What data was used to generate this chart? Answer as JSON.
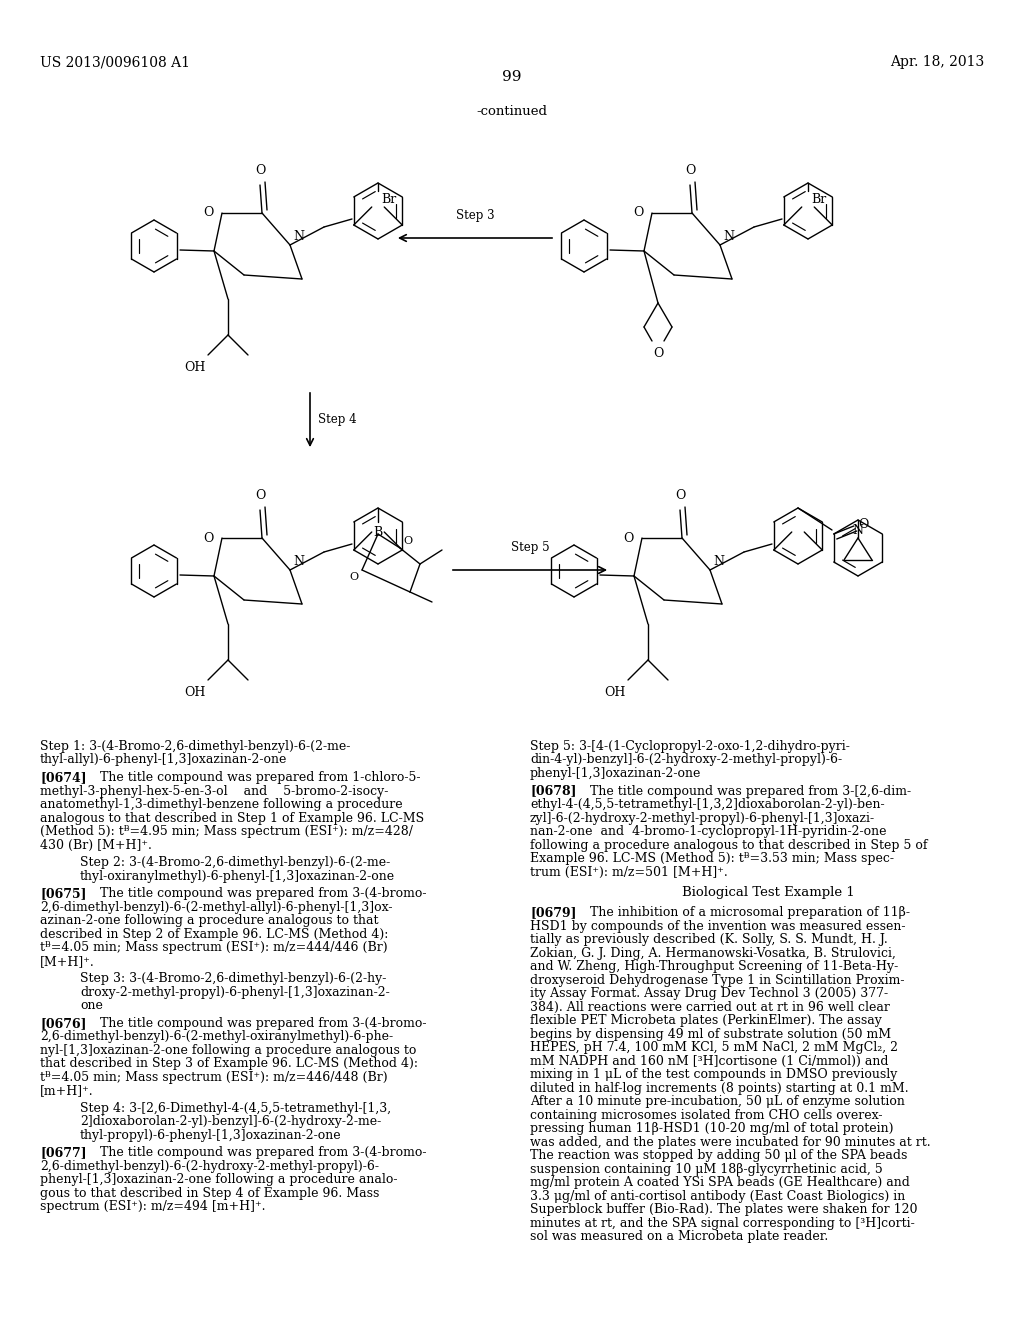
{
  "page_header_left": "US 2013/0096108 A1",
  "page_header_right": "Apr. 18, 2013",
  "page_number": "99",
  "continued_label": "-continued",
  "background_color": "#ffffff"
}
